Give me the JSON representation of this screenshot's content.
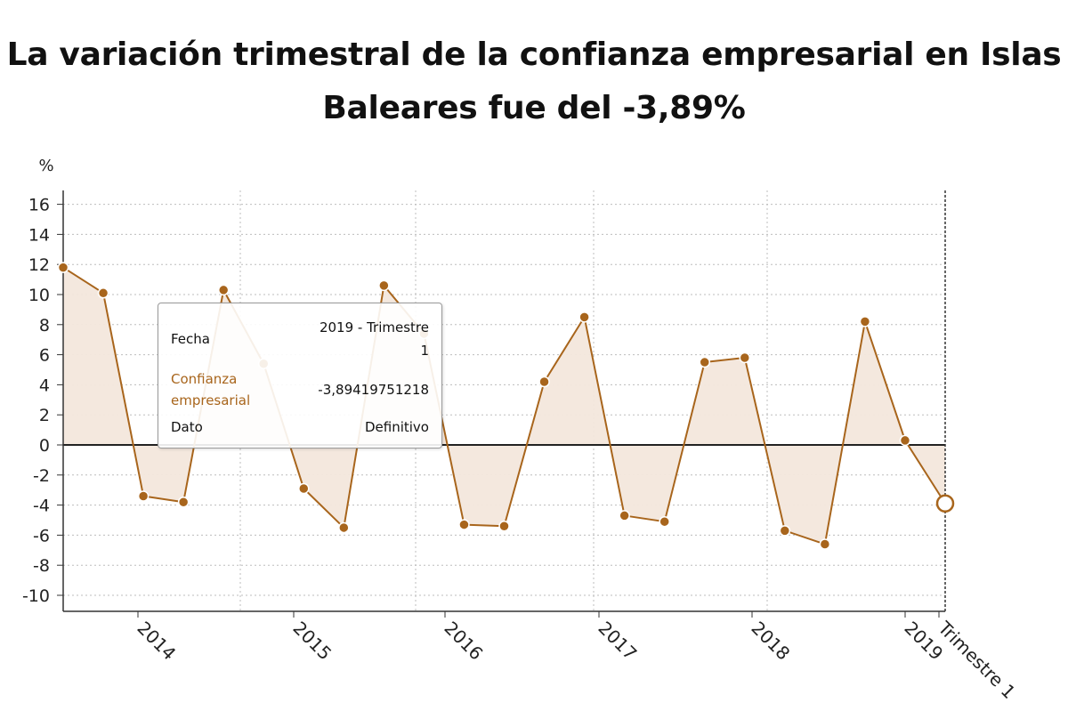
{
  "title_line1": "La variación trimestral de la confianza empresarial en Islas",
  "title_line2": "Baleares fue del -3,89%",
  "tooltip": {
    "fecha_label": "Fecha",
    "fecha_value_line1": "2019 - Trimestre",
    "fecha_value_line2": "1",
    "series_label_line1": "Confianza",
    "series_label_line2": "empresarial",
    "series_value": "-3,89419751218",
    "dato_label": "Dato",
    "dato_value": "Definitivo"
  },
  "colors": {
    "series": "#a8651c",
    "fill": "#f3e7dc",
    "zero_line": "#222222",
    "grid": "#bdbdbd"
  },
  "chart_data": {
    "type": "area",
    "ylabel": "%",
    "ylim": [
      -11,
      16.5
    ],
    "yticks": [
      16,
      14,
      12,
      10,
      8,
      6,
      4,
      2,
      0,
      -2,
      -4,
      -6,
      -8,
      -10
    ],
    "xticks": [
      "2014",
      "2015",
      "2016",
      "2017",
      "2018",
      "2019",
      "Trimestre 1"
    ],
    "grid": true,
    "series": [
      {
        "name": "Confianza empresarial",
        "x": [
          "2013 T3",
          "2013 T4",
          "2014 T1",
          "2014 T2",
          "2014 T3",
          "2014 T4",
          "2015 T1",
          "2015 T2",
          "2015 T3",
          "2015 T4",
          "2016 T1",
          "2016 T2",
          "2016 T3",
          "2016 T4",
          "2017 T1",
          "2017 T2",
          "2017 T3",
          "2017 T4",
          "2018 T1",
          "2018 T2",
          "2018 T3",
          "2018 T4",
          "2019 T1"
        ],
        "values": [
          11.8,
          10.1,
          -3.4,
          -3.8,
          10.3,
          5.4,
          -2.9,
          -5.5,
          10.6,
          7.4,
          -5.3,
          -5.4,
          4.2,
          8.5,
          -4.7,
          -5.1,
          5.5,
          5.8,
          -5.7,
          -6.6,
          8.2,
          0.3,
          -3.89
        ]
      }
    ]
  }
}
